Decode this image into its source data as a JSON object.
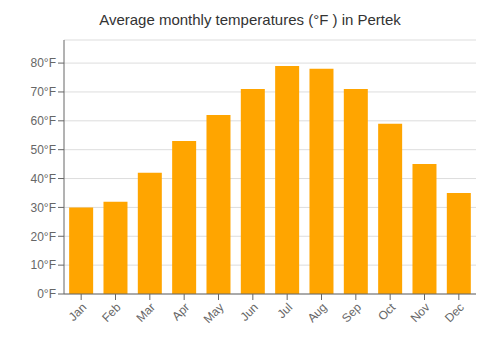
{
  "chart_data": {
    "type": "bar",
    "title": "Average monthly temperatures (°F ) in Pertek",
    "categories": [
      "Jan",
      "Feb",
      "Mar",
      "Apr",
      "May",
      "Jun",
      "Jul",
      "Aug",
      "Sep",
      "Oct",
      "Nov",
      "Dec"
    ],
    "values": [
      30,
      32,
      42,
      53,
      62,
      71,
      79,
      78,
      71,
      59,
      45,
      35
    ],
    "color": "#FFA500",
    "ylim": [
      0,
      88
    ],
    "yticks": [
      {
        "value": 0,
        "label": "0°F"
      },
      {
        "value": 10,
        "label": "10°F"
      },
      {
        "value": 20,
        "label": "20°F"
      },
      {
        "value": 30,
        "label": "30°F"
      },
      {
        "value": 40,
        "label": "40°F"
      },
      {
        "value": 50,
        "label": "50°F"
      },
      {
        "value": 60,
        "label": "60°F"
      },
      {
        "value": 70,
        "label": "70°F"
      },
      {
        "value": 80,
        "label": "80°F"
      }
    ],
    "grid": true
  }
}
